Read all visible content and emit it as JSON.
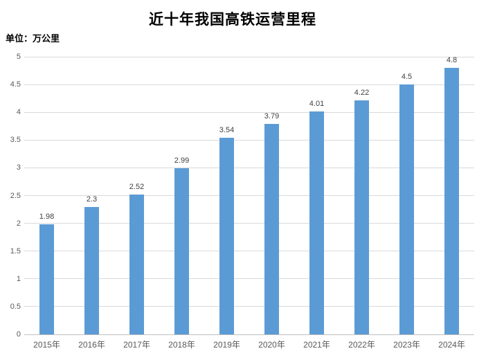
{
  "chart_data": {
    "type": "bar",
    "title": "近十年我国高铁运营里程",
    "unit_label": "单位：万公里",
    "categories": [
      "2015年",
      "2016年",
      "2017年",
      "2018年",
      "2019年",
      "2020年",
      "2021年",
      "2022年",
      "2023年",
      "2024年"
    ],
    "values": [
      1.98,
      2.3,
      2.52,
      2.99,
      3.54,
      3.79,
      4.01,
      4.22,
      4.5,
      4.8
    ],
    "value_labels": [
      "1.98",
      "2.3",
      "2.52",
      "2.99",
      "3.54",
      "3.79",
      "4.01",
      "4.22",
      "4.5",
      "4.8"
    ],
    "xlabel": "",
    "ylabel": "",
    "ylim": [
      0,
      5
    ],
    "ytick_step": 0.5,
    "ytick_labels": [
      "0",
      "0.5",
      "1",
      "1.5",
      "2",
      "2.5",
      "3",
      "3.5",
      "4",
      "4.5",
      "5"
    ],
    "grid": true,
    "legend_position": "none",
    "bar_color": "#5b9bd5",
    "gridline_color": "#d9d9d9",
    "axis_line_color": "#bfbfbf",
    "axis_label_color": "#595959",
    "data_label_color": "#404040",
    "background_color": "#ffffff"
  }
}
